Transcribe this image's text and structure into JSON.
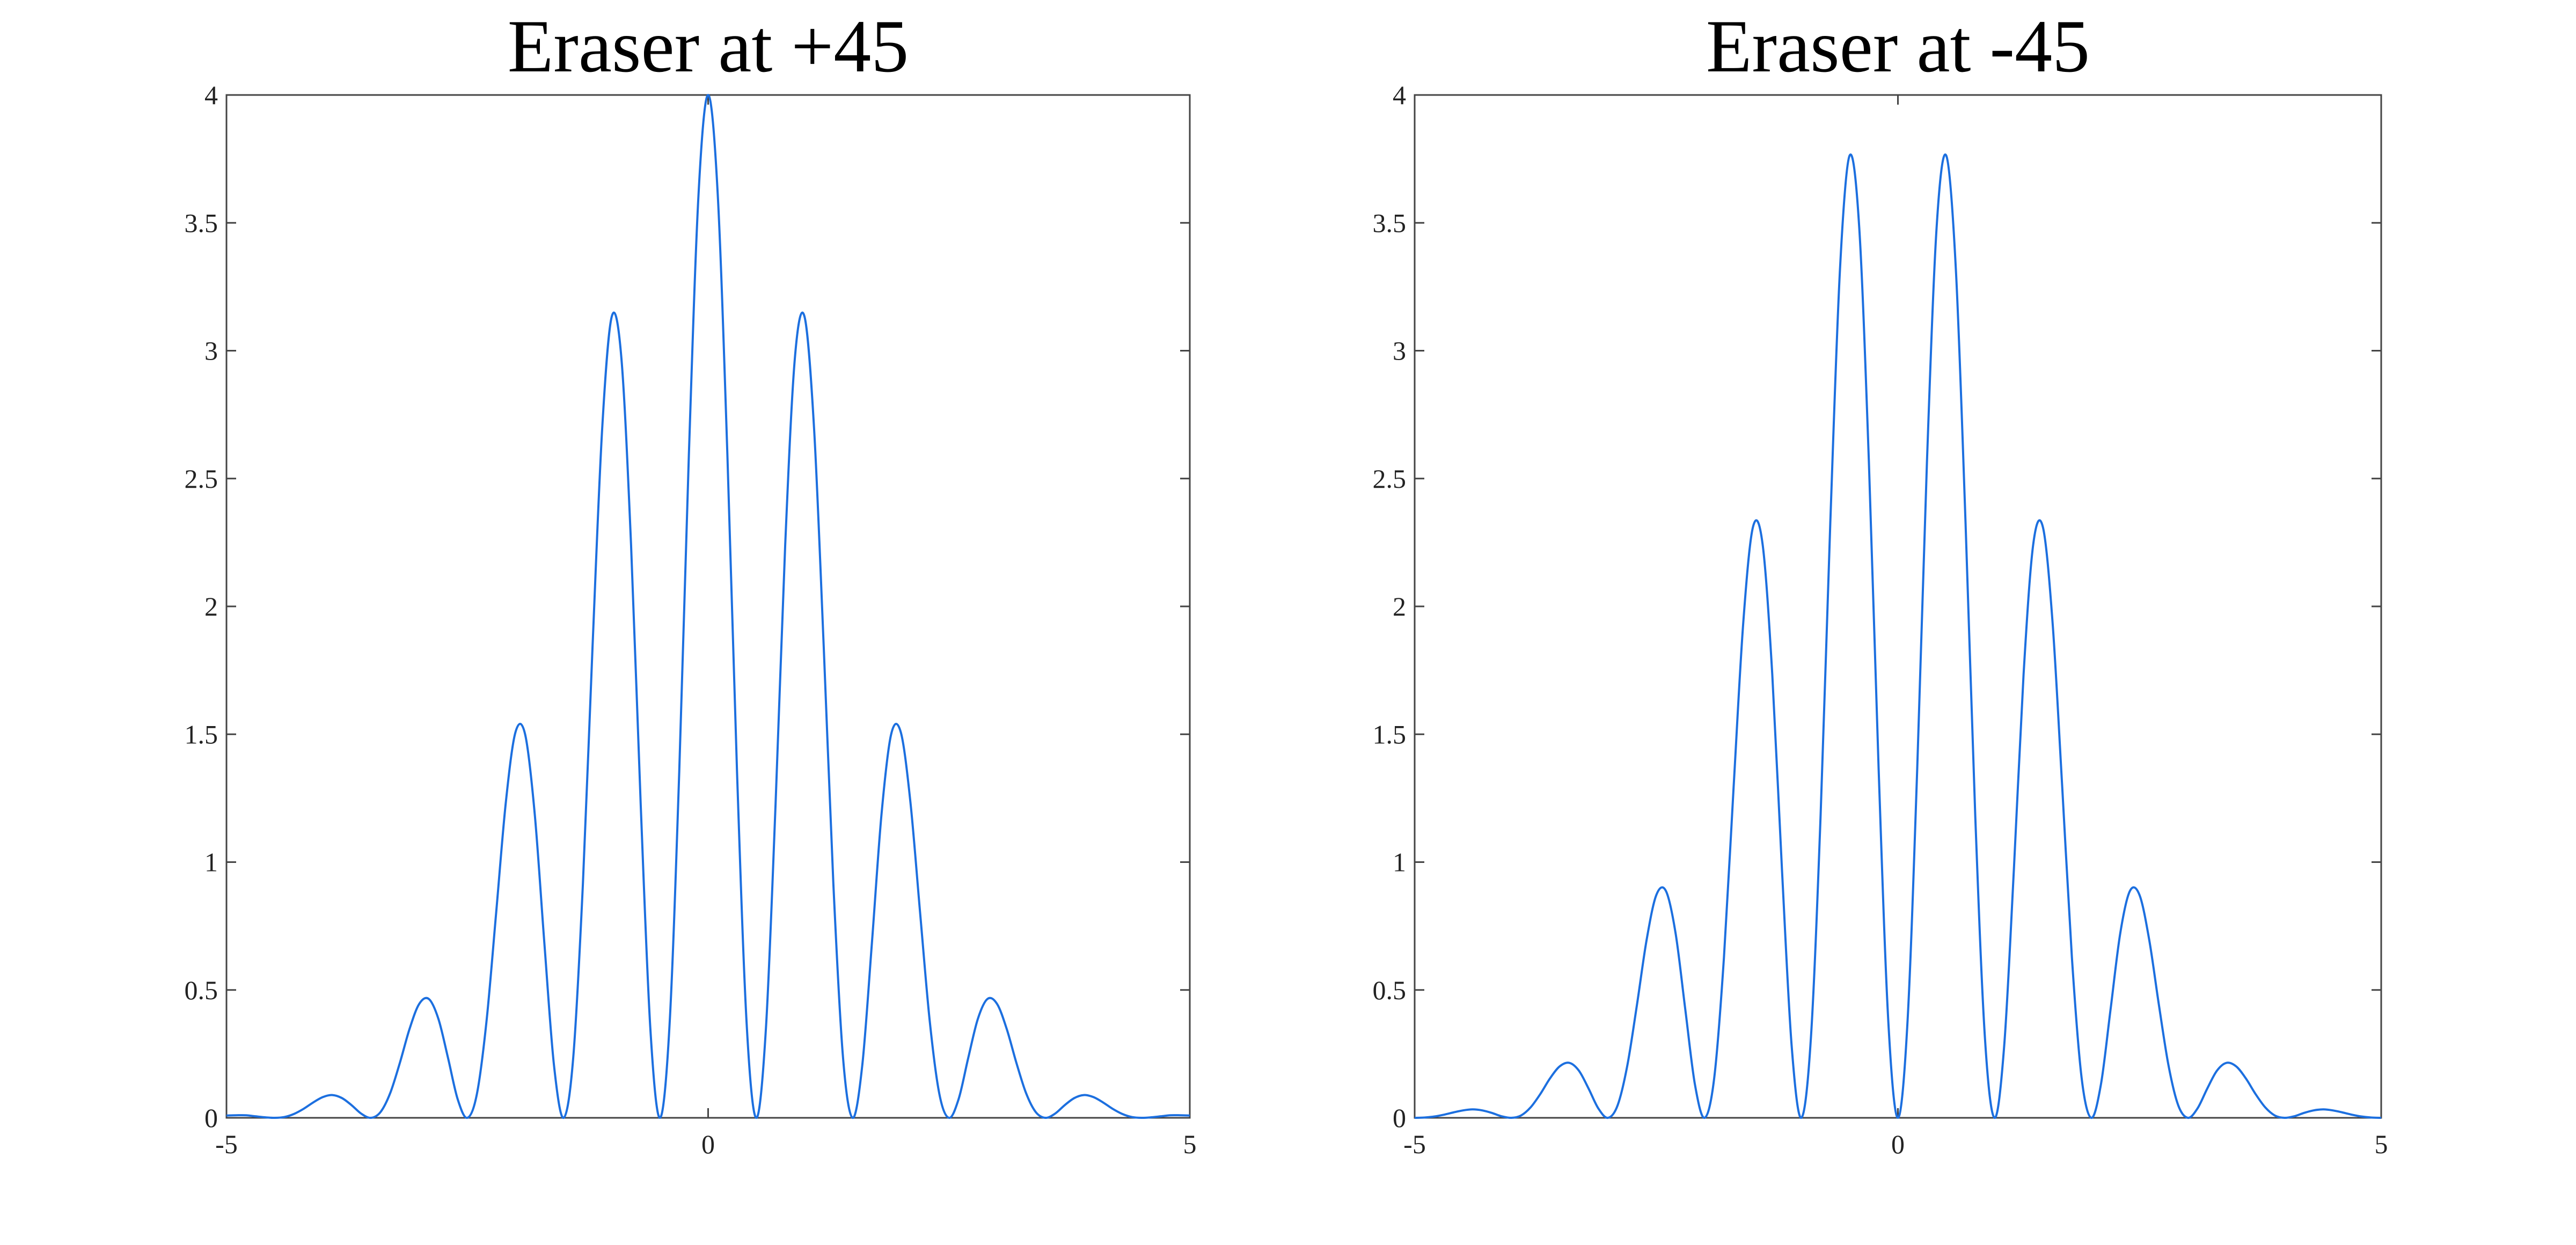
{
  "chart_data": [
    {
      "type": "line",
      "title": "Eraser at +45",
      "x": [
        -5,
        -4.9,
        -4.8,
        -4.7,
        -4.6,
        -4.5,
        -4.4,
        -4.3,
        -4.2,
        -4.1,
        -4,
        -3.9,
        -3.8,
        -3.7,
        -3.6,
        -3.5,
        -3.4,
        -3.3,
        -3.2,
        -3.1,
        -3,
        -2.9,
        -2.8,
        -2.7,
        -2.6,
        -2.5,
        -2.4,
        -2.3,
        -2.2,
        -2.1,
        -2,
        -1.9,
        -1.8,
        -1.7,
        -1.6,
        -1.5,
        -1.4,
        -1.3,
        -1.2,
        -1.1,
        -1,
        -0.9,
        -0.8,
        -0.7,
        -0.6,
        -0.5,
        -0.4,
        -0.3,
        -0.2,
        -0.1,
        0,
        0.1,
        0.2,
        0.3,
        0.4,
        0.5,
        0.6,
        0.7,
        0.8,
        0.9,
        1,
        1.1,
        1.2,
        1.3,
        1.4,
        1.5,
        1.6,
        1.7,
        1.8,
        1.9,
        2,
        2.1,
        2.2,
        2.3,
        2.4,
        2.5,
        2.6,
        2.7,
        2.8,
        2.9,
        3,
        3.1,
        3.2,
        3.3,
        3.4,
        3.5,
        3.6,
        3.7,
        3.8,
        3.9,
        4,
        4.1,
        4.2,
        4.3,
        4.4,
        4.5,
        4.6,
        4.7,
        4.8,
        4.9,
        5
      ],
      "values": [
        0.009,
        0.01,
        0.01,
        0.006,
        0.002,
        0,
        0.003,
        0.015,
        0.035,
        0.06,
        0.081,
        0.089,
        0.077,
        0.049,
        0.016,
        0,
        0.023,
        0.097,
        0.215,
        0.347,
        0.445,
        0.465,
        0.387,
        0.234,
        0.073,
        0,
        0.094,
        0.38,
        0.804,
        1.234,
        1.508,
        1.5,
        1.188,
        0.683,
        0.205,
        0,
        0.237,
        0.915,
        1.842,
        2.694,
        3.134,
        2.969,
        2.24,
        1.226,
        0.35,
        0,
        0.367,
        1.352,
        2.592,
        3.609,
        4,
        3.609,
        2.592,
        1.352,
        0.367,
        0,
        0.35,
        1.226,
        2.24,
        2.969,
        3.134,
        2.694,
        1.842,
        0.915,
        0.237,
        0,
        0.205,
        0.683,
        1.188,
        1.5,
        1.508,
        1.234,
        0.804,
        0.38,
        0.094,
        0,
        0.073,
        0.234,
        0.387,
        0.465,
        0.445,
        0.347,
        0.215,
        0.097,
        0.023,
        0,
        0.016,
        0.049,
        0.077,
        0.089,
        0.081,
        0.06,
        0.035,
        0.015,
        0.003,
        0,
        0.002,
        0.006,
        0.01,
        0.01,
        0.009
      ],
      "color": "#1c6fdf",
      "xlim": [
        -5,
        5
      ],
      "ylim": [
        0,
        4
      ],
      "xticks": [
        -5,
        0,
        5
      ],
      "yticks": [
        0,
        0.5,
        1,
        1.5,
        2,
        2.5,
        3,
        3.5,
        4
      ]
    },
    {
      "type": "line",
      "title": "Eraser at -45",
      "x": [
        -5,
        -4.9,
        -4.8,
        -4.7,
        -4.6,
        -4.5,
        -4.4,
        -4.3,
        -4.2,
        -4.1,
        -4,
        -3.9,
        -3.8,
        -3.7,
        -3.6,
        -3.5,
        -3.4,
        -3.3,
        -3.2,
        -3.1,
        -3,
        -2.9,
        -2.8,
        -2.7,
        -2.6,
        -2.5,
        -2.4,
        -2.3,
        -2.2,
        -2.1,
        -2,
        -1.9,
        -1.8,
        -1.7,
        -1.6,
        -1.5,
        -1.4,
        -1.3,
        -1.2,
        -1.1,
        -1,
        -0.9,
        -0.8,
        -0.7,
        -0.6,
        -0.5,
        -0.4,
        -0.3,
        -0.2,
        -0.1,
        0,
        0.1,
        0.2,
        0.3,
        0.4,
        0.5,
        0.6,
        0.7,
        0.8,
        0.9,
        1,
        1.1,
        1.2,
        1.3,
        1.4,
        1.5,
        1.6,
        1.7,
        1.8,
        1.9,
        2,
        2.1,
        2.2,
        2.3,
        2.4,
        2.5,
        2.6,
        2.7,
        2.8,
        2.9,
        3,
        3.1,
        3.2,
        3.3,
        3.4,
        3.5,
        3.6,
        3.7,
        3.8,
        3.9,
        4,
        4.1,
        4.2,
        4.3,
        4.4,
        4.5,
        4.6,
        4.7,
        4.8,
        4.9,
        5
      ],
      "values": [
        0,
        0.001,
        0.005,
        0.012,
        0.021,
        0.029,
        0.033,
        0.029,
        0.019,
        0.006,
        0,
        0.009,
        0.041,
        0.093,
        0.154,
        0.201,
        0.215,
        0.184,
        0.114,
        0.037,
        0,
        0.049,
        0.204,
        0.442,
        0.696,
        0.871,
        0.887,
        0.721,
        0.424,
        0.13,
        0,
        0.158,
        0.627,
        1.293,
        1.937,
        2.31,
        2.243,
        1.734,
        0.973,
        0.284,
        0,
        0.314,
        1.182,
        2.323,
        3.314,
        3.763,
        3.48,
        2.561,
        1.369,
        0.381,
        0,
        0.381,
        1.369,
        2.561,
        3.48,
        3.763,
        3.314,
        2.323,
        1.182,
        0.314,
        0,
        0.284,
        0.973,
        1.734,
        2.243,
        2.31,
        1.937,
        1.293,
        0.627,
        0.158,
        0,
        0.13,
        0.424,
        0.721,
        0.887,
        0.871,
        0.696,
        0.442,
        0.204,
        0.049,
        0,
        0.037,
        0.114,
        0.184,
        0.215,
        0.201,
        0.154,
        0.093,
        0.041,
        0.009,
        0,
        0.006,
        0.019,
        0.029,
        0.033,
        0.029,
        0.021,
        0.012,
        0.005,
        0.001,
        0
      ],
      "color": "#1c6fdf",
      "xlim": [
        -5,
        5
      ],
      "ylim": [
        0,
        4
      ],
      "xticks": [
        -5,
        0,
        5
      ],
      "yticks": [
        0,
        0.5,
        1,
        1.5,
        2,
        2.5,
        3,
        3.5,
        4
      ]
    }
  ]
}
